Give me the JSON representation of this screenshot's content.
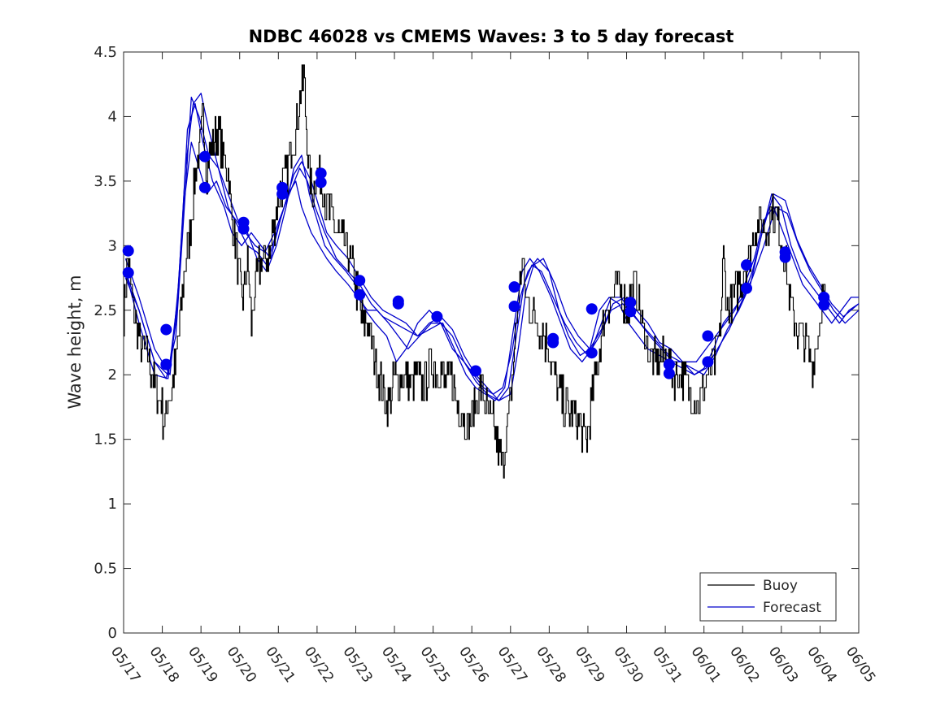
{
  "chart_data": {
    "type": "line",
    "title": "NDBC 46028 vs CMEMS Waves: 3 to 5 day forecast",
    "xlabel": "",
    "ylabel": "Wave height, m",
    "x_tick_labels": [
      "05/17",
      "05/18",
      "05/19",
      "05/20",
      "05/21",
      "05/22",
      "05/23",
      "05/24",
      "05/25",
      "05/26",
      "05/27",
      "05/28",
      "05/29",
      "05/30",
      "05/31",
      "06/01",
      "06/02",
      "06/03",
      "06/04",
      "06/05"
    ],
    "xlim_days": [
      0,
      19
    ],
    "ylim": [
      0,
      4.5
    ],
    "y_ticks": [
      0,
      0.5,
      1,
      1.5,
      2,
      2.5,
      3,
      3.5,
      4,
      4.5
    ],
    "y_tick_labels": [
      "0",
      "0.5",
      "1",
      "1.5",
      "2",
      "2.5",
      "3",
      "3.5",
      "4",
      "4.5"
    ],
    "legend": {
      "position": "bottom-right",
      "entries": [
        {
          "label": "Buoy",
          "color": "#000000"
        },
        {
          "label": "Forecast",
          "color": "#0000cc"
        }
      ]
    },
    "colors": {
      "buoy": "#000000",
      "forecast": "#0000cc",
      "marker": "#0000ee"
    },
    "grid": false,
    "buoy_anchors": [
      [
        0.0,
        2.5
      ],
      [
        0.1,
        2.9
      ],
      [
        0.25,
        2.5
      ],
      [
        0.45,
        2.2
      ],
      [
        0.6,
        2.2
      ],
      [
        0.8,
        1.9
      ],
      [
        0.95,
        1.8
      ],
      [
        1.05,
        1.6
      ],
      [
        1.15,
        1.8
      ],
      [
        1.25,
        1.9
      ],
      [
        1.35,
        2.1
      ],
      [
        1.45,
        2.4
      ],
      [
        1.6,
        2.9
      ],
      [
        1.75,
        3.2
      ],
      [
        1.85,
        3.6
      ],
      [
        1.95,
        3.7
      ],
      [
        2.05,
        4.0
      ],
      [
        2.15,
        3.6
      ],
      [
        2.3,
        3.8
      ],
      [
        2.45,
        3.9
      ],
      [
        2.55,
        3.7
      ],
      [
        2.7,
        3.6
      ],
      [
        2.8,
        3.2
      ],
      [
        2.9,
        3.0
      ],
      [
        3.0,
        2.7
      ],
      [
        3.1,
        2.6
      ],
      [
        3.2,
        2.9
      ],
      [
        3.3,
        2.4
      ],
      [
        3.45,
        2.8
      ],
      [
        3.6,
        2.9
      ],
      [
        3.75,
        2.9
      ],
      [
        3.9,
        3.2
      ],
      [
        4.0,
        3.4
      ],
      [
        4.15,
        3.5
      ],
      [
        4.25,
        3.6
      ],
      [
        4.35,
        3.8
      ],
      [
        4.45,
        3.9
      ],
      [
        4.55,
        4.1
      ],
      [
        4.65,
        4.3
      ],
      [
        4.72,
        3.9
      ],
      [
        4.8,
        3.5
      ],
      [
        4.9,
        3.4
      ],
      [
        5.0,
        3.6
      ],
      [
        5.1,
        3.5
      ],
      [
        5.25,
        3.3
      ],
      [
        5.4,
        3.2
      ],
      [
        5.55,
        3.1
      ],
      [
        5.7,
        3.0
      ],
      [
        5.85,
        2.9
      ],
      [
        6.0,
        2.7
      ],
      [
        6.1,
        2.5
      ],
      [
        6.2,
        2.4
      ],
      [
        6.3,
        2.4
      ],
      [
        6.45,
        2.2
      ],
      [
        6.6,
        2.0
      ],
      [
        6.75,
        1.8
      ],
      [
        6.9,
        1.8
      ],
      [
        7.0,
        2.0
      ],
      [
        7.1,
        1.9
      ],
      [
        7.25,
        2.0
      ],
      [
        7.4,
        1.9
      ],
      [
        7.55,
        2.0
      ],
      [
        7.7,
        1.9
      ],
      [
        7.85,
        2.0
      ],
      [
        8.0,
        2.1
      ],
      [
        8.1,
        2.0
      ],
      [
        8.2,
        2.1
      ],
      [
        8.3,
        1.9
      ],
      [
        8.45,
        2.0
      ],
      [
        8.6,
        1.8
      ],
      [
        8.75,
        1.7
      ],
      [
        8.9,
        1.6
      ],
      [
        9.0,
        1.7
      ],
      [
        9.1,
        1.8
      ],
      [
        9.25,
        1.9
      ],
      [
        9.4,
        1.7
      ],
      [
        9.55,
        1.6
      ],
      [
        9.7,
        1.4
      ],
      [
        9.8,
        1.3
      ],
      [
        9.9,
        1.6
      ],
      [
        10.0,
        1.8
      ],
      [
        10.1,
        2.2
      ],
      [
        10.2,
        2.6
      ],
      [
        10.3,
        2.9
      ],
      [
        10.4,
        2.6
      ],
      [
        10.55,
        2.5
      ],
      [
        10.7,
        2.4
      ],
      [
        10.85,
        2.3
      ],
      [
        11.0,
        2.2
      ],
      [
        11.1,
        2.0
      ],
      [
        11.2,
        1.9
      ],
      [
        11.35,
        1.8
      ],
      [
        11.5,
        1.7
      ],
      [
        11.65,
        1.7
      ],
      [
        11.8,
        1.6
      ],
      [
        11.95,
        1.5
      ],
      [
        12.05,
        1.7
      ],
      [
        12.15,
        1.9
      ],
      [
        12.3,
        2.2
      ],
      [
        12.45,
        2.5
      ],
      [
        12.6,
        2.6
      ],
      [
        12.75,
        2.7
      ],
      [
        12.9,
        2.6
      ],
      [
        13.0,
        2.5
      ],
      [
        13.1,
        2.6
      ],
      [
        13.2,
        2.7
      ],
      [
        13.3,
        2.6
      ],
      [
        13.4,
        2.4
      ],
      [
        13.55,
        2.2
      ],
      [
        13.7,
        2.1
      ],
      [
        13.85,
        2.1
      ],
      [
        14.0,
        2.1
      ],
      [
        14.15,
        2.0
      ],
      [
        14.3,
        2.0
      ],
      [
        14.45,
        2.0
      ],
      [
        14.6,
        1.9
      ],
      [
        14.75,
        1.8
      ],
      [
        14.9,
        1.8
      ],
      [
        15.0,
        1.9
      ],
      [
        15.1,
        2.0
      ],
      [
        15.25,
        2.1
      ],
      [
        15.4,
        2.3
      ],
      [
        15.5,
        2.9
      ],
      [
        15.6,
        2.5
      ],
      [
        15.75,
        2.6
      ],
      [
        15.9,
        2.7
      ],
      [
        16.0,
        2.8
      ],
      [
        16.15,
        2.9
      ],
      [
        16.3,
        3.1
      ],
      [
        16.45,
        3.2
      ],
      [
        16.6,
        3.1
      ],
      [
        16.75,
        3.3
      ],
      [
        16.9,
        3.2
      ],
      [
        17.0,
        3.0
      ],
      [
        17.1,
        2.9
      ],
      [
        17.2,
        2.6
      ],
      [
        17.35,
        2.4
      ],
      [
        17.5,
        2.3
      ],
      [
        17.65,
        2.2
      ],
      [
        17.8,
        2.1
      ],
      [
        17.95,
        2.3
      ],
      [
        18.05,
        2.6
      ],
      [
        18.15,
        2.5
      ]
    ],
    "forecast_series": [
      {
        "x": [
          0.05,
          0.4,
          0.8,
          1.2,
          1.45,
          1.65,
          1.85,
          2.05,
          2.3,
          2.6,
          2.8,
          3.05,
          3.3,
          3.55,
          3.8,
          4.05,
          4.25,
          4.45,
          4.6,
          4.85,
          5.05,
          5.25,
          5.5,
          5.8,
          6.05,
          6.3,
          6.55,
          6.85,
          7.1,
          7.35,
          7.65,
          7.95,
          8.25,
          8.55,
          8.85,
          9.1,
          9.35,
          9.6,
          9.85,
          10.1,
          10.3,
          10.5,
          10.75,
          11.05,
          11.3,
          11.55,
          11.85,
          12.1,
          12.35,
          12.6,
          12.85,
          13.1,
          13.35,
          13.6,
          13.9,
          14.2,
          14.5,
          14.8,
          15.05,
          15.3,
          15.55,
          15.8,
          16.05,
          16.3,
          16.55,
          16.8,
          17.05,
          17.3,
          17.55,
          17.8,
          18.05,
          18.3,
          18.55,
          18.8,
          19.0
        ],
        "y": [
          2.9,
          2.6,
          2.2,
          2.0,
          2.8,
          3.9,
          4.1,
          3.8,
          3.5,
          3.3,
          3.1,
          3.0,
          3.1,
          3.0,
          2.9,
          3.2,
          3.4,
          3.5,
          3.3,
          3.1,
          3.0,
          2.9,
          2.8,
          2.7,
          2.6,
          2.5,
          2.5,
          2.4,
          2.3,
          2.2,
          2.3,
          2.4,
          2.4,
          2.2,
          2.0,
          1.9,
          1.85,
          1.8,
          1.9,
          2.4,
          2.8,
          2.9,
          2.8,
          2.6,
          2.4,
          2.2,
          2.1,
          2.2,
          2.4,
          2.6,
          2.6,
          2.5,
          2.4,
          2.3,
          2.2,
          2.1,
          2.1,
          2.1,
          2.2,
          2.3,
          2.4,
          2.5,
          2.7,
          2.9,
          3.2,
          3.3,
          3.1,
          2.9,
          2.7,
          2.6,
          2.5,
          2.4,
          2.5,
          2.6,
          2.6
        ]
      },
      {
        "x": [
          0.05,
          0.4,
          0.8,
          1.1,
          1.35,
          1.55,
          1.75,
          1.95,
          2.2,
          2.45,
          2.7,
          2.95,
          3.2,
          3.45,
          3.7,
          3.95,
          4.2,
          4.4,
          4.6,
          4.8,
          5.0,
          5.2,
          5.45,
          5.75,
          6.0,
          6.25,
          6.5,
          6.8,
          7.05,
          7.3,
          7.6,
          7.9,
          8.2,
          8.5,
          8.8,
          9.05,
          9.3,
          9.55,
          9.8,
          10.05,
          10.25,
          10.45,
          10.7,
          11.0,
          11.25,
          11.5,
          11.8,
          12.05,
          12.3,
          12.55,
          12.8,
          13.05,
          13.3,
          13.55,
          13.85,
          14.15,
          14.45,
          14.75,
          15.0,
          15.25,
          15.5,
          15.75,
          16.0,
          16.25,
          16.5,
          16.75,
          17.0,
          17.25,
          17.5,
          17.75,
          18.0,
          18.25,
          18.5,
          18.75,
          19.0
        ],
        "y": [
          2.8,
          2.5,
          2.1,
          1.97,
          2.3,
          3.2,
          4.15,
          4.0,
          3.7,
          3.6,
          3.4,
          3.2,
          3.1,
          2.9,
          2.8,
          3.0,
          3.3,
          3.6,
          3.7,
          3.4,
          3.2,
          3.0,
          2.9,
          2.8,
          2.7,
          2.5,
          2.4,
          2.3,
          2.1,
          2.2,
          2.4,
          2.5,
          2.4,
          2.2,
          2.1,
          2.0,
          1.9,
          1.85,
          1.9,
          2.2,
          2.6,
          2.8,
          2.9,
          2.8,
          2.5,
          2.3,
          2.15,
          2.2,
          2.5,
          2.6,
          2.55,
          2.4,
          2.3,
          2.2,
          2.15,
          2.1,
          2.05,
          2.0,
          2.05,
          2.2,
          2.4,
          2.5,
          2.6,
          2.8,
          3.1,
          3.4,
          3.3,
          3.0,
          2.8,
          2.7,
          2.6,
          2.5,
          2.4,
          2.5,
          2.55
        ]
      },
      {
        "x": [
          0.05,
          0.4,
          0.8,
          1.15,
          1.4,
          1.6,
          1.8,
          2.0,
          2.2,
          2.45,
          2.7,
          2.95,
          3.2,
          3.45,
          3.7,
          3.95,
          4.2,
          4.4,
          4.6,
          4.85,
          5.05,
          5.25,
          5.5,
          5.8,
          6.1,
          6.4,
          6.7,
          7.0,
          7.3,
          7.6,
          7.9,
          8.2,
          8.5,
          8.8,
          9.1,
          9.4,
          9.7,
          9.95,
          10.15,
          10.35,
          10.55,
          10.8,
          11.1,
          11.4,
          11.7,
          12.0,
          12.3,
          12.6,
          12.9,
          13.2,
          13.5,
          13.8,
          14.1,
          14.4,
          14.7,
          15.0,
          15.3,
          15.6,
          15.9,
          16.2,
          16.5,
          16.8,
          17.1,
          17.4,
          17.7,
          18.0,
          18.3,
          18.6,
          19.0
        ],
        "y": [
          2.8,
          2.4,
          2.0,
          1.97,
          2.6,
          3.6,
          4.1,
          4.18,
          3.9,
          3.6,
          3.3,
          3.15,
          3.0,
          2.95,
          2.85,
          3.1,
          3.35,
          3.55,
          3.65,
          3.5,
          3.3,
          3.1,
          3.0,
          2.9,
          2.75,
          2.6,
          2.5,
          2.45,
          2.4,
          2.3,
          2.35,
          2.4,
          2.3,
          2.1,
          1.95,
          1.85,
          1.8,
          1.9,
          2.3,
          2.7,
          2.85,
          2.8,
          2.6,
          2.4,
          2.25,
          2.15,
          2.3,
          2.5,
          2.55,
          2.45,
          2.35,
          2.25,
          2.15,
          2.1,
          2.05,
          2.0,
          2.15,
          2.35,
          2.5,
          2.7,
          3.1,
          3.4,
          3.35,
          3.05,
          2.85,
          2.7,
          2.55,
          2.45,
          2.55
        ]
      },
      {
        "x": [
          0.05,
          0.4,
          0.8,
          1.15,
          1.35,
          1.55,
          1.75,
          1.95,
          2.15,
          2.4,
          2.65,
          2.9,
          3.15,
          3.4,
          3.65,
          3.9,
          4.15,
          4.35,
          4.55,
          4.75,
          4.95,
          5.2,
          5.5,
          5.8,
          6.1,
          6.4,
          6.7,
          7.0,
          7.3,
          7.6,
          7.9,
          8.2,
          8.5,
          8.8,
          9.1,
          9.4,
          9.7,
          10.0,
          10.2,
          10.4,
          10.6,
          10.85,
          11.15,
          11.45,
          11.75,
          12.05,
          12.35,
          12.65,
          12.95,
          13.25,
          13.55,
          13.85,
          14.15,
          14.45,
          14.75,
          15.05,
          15.35,
          15.65,
          15.95,
          16.25,
          16.55,
          16.85,
          17.15,
          17.45,
          17.75,
          18.05,
          18.35,
          18.65,
          19.0
        ],
        "y": [
          2.75,
          2.5,
          2.1,
          2.0,
          2.4,
          3.3,
          3.8,
          3.6,
          3.4,
          3.5,
          3.3,
          3.2,
          3.1,
          3.0,
          2.95,
          3.1,
          3.3,
          3.45,
          3.6,
          3.5,
          3.3,
          3.1,
          2.9,
          2.8,
          2.7,
          2.55,
          2.45,
          2.4,
          2.35,
          2.3,
          2.4,
          2.45,
          2.35,
          2.15,
          2.0,
          1.9,
          1.8,
          1.85,
          2.2,
          2.65,
          2.85,
          2.9,
          2.7,
          2.45,
          2.3,
          2.2,
          2.35,
          2.55,
          2.6,
          2.5,
          2.4,
          2.25,
          2.2,
          2.1,
          2.0,
          2.05,
          2.2,
          2.35,
          2.55,
          2.75,
          3.0,
          3.3,
          3.25,
          3.0,
          2.8,
          2.65,
          2.5,
          2.4,
          2.5
        ]
      }
    ],
    "forecast_markers": [
      [
        0.12,
        2.96
      ],
      [
        0.12,
        2.79
      ],
      [
        1.1,
        2.35
      ],
      [
        1.1,
        2.08
      ],
      [
        2.1,
        3.69
      ],
      [
        2.1,
        3.45
      ],
      [
        3.1,
        3.18
      ],
      [
        3.1,
        3.13
      ],
      [
        4.1,
        3.45
      ],
      [
        4.1,
        3.4
      ],
      [
        5.1,
        3.56
      ],
      [
        5.1,
        3.49
      ],
      [
        6.1,
        2.73
      ],
      [
        6.1,
        2.62
      ],
      [
        7.1,
        2.57
      ],
      [
        7.1,
        2.55
      ],
      [
        8.1,
        2.45
      ],
      [
        9.1,
        2.03
      ],
      [
        10.1,
        2.68
      ],
      [
        10.1,
        2.53
      ],
      [
        11.1,
        2.28
      ],
      [
        11.1,
        2.25
      ],
      [
        12.1,
        2.51
      ],
      [
        12.1,
        2.17
      ],
      [
        13.1,
        2.56
      ],
      [
        13.1,
        2.49
      ],
      [
        14.1,
        2.08
      ],
      [
        14.1,
        2.01
      ],
      [
        15.1,
        2.3
      ],
      [
        15.1,
        2.1
      ],
      [
        16.1,
        2.85
      ],
      [
        16.1,
        2.67
      ],
      [
        17.1,
        2.95
      ],
      [
        17.1,
        2.91
      ],
      [
        18.1,
        2.6
      ],
      [
        18.1,
        2.54
      ]
    ]
  }
}
